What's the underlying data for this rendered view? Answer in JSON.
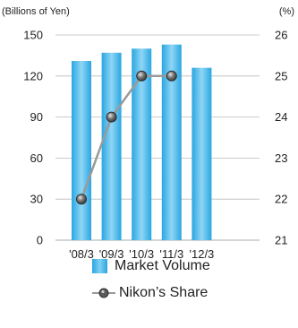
{
  "chart_data": {
    "type": "bar",
    "categories": [
      "'08/3",
      "'09/3",
      "'10/3",
      "'11/3",
      "'12/3"
    ],
    "series": [
      {
        "name": "Market Volume",
        "type": "bar",
        "axis": "left",
        "values": [
          131,
          137,
          140,
          143,
          126
        ]
      },
      {
        "name": "Nikon’s Share",
        "type": "line",
        "axis": "right",
        "values": [
          22,
          24,
          25,
          25,
          null
        ]
      }
    ],
    "y_left": {
      "label": "(Billions of Yen)",
      "min": 0,
      "max": 150,
      "ticks": [
        0,
        30,
        60,
        90,
        120,
        150
      ]
    },
    "y_right": {
      "label": "(%)",
      "min": 21,
      "max": 26,
      "ticks": [
        21,
        22,
        23,
        24,
        25,
        26
      ]
    },
    "grid": true,
    "legend_position": "bottom",
    "colors": {
      "bar": "#2aa6e1",
      "bar_highlight": "#8fd6f6",
      "line": "#9a9a9a",
      "marker": "#555555",
      "grid": "#bbbbbb"
    }
  }
}
